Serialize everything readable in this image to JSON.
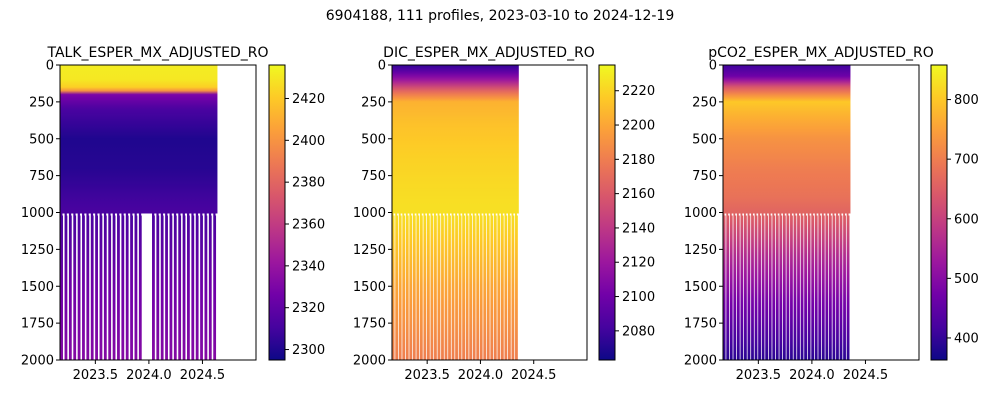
{
  "suptitle": "6904188, 111 profiles, 2023-03-10 to 2024-12-19",
  "colormap": "plasma",
  "chart_data": [
    {
      "type": "heatmap",
      "title": "TALK_ESPER_MX_ADJUSTED_RO",
      "x_ticks": [
        2023.5,
        2024.0,
        2024.5
      ],
      "x_tick_labels": [
        "2023.5",
        "2024.0",
        "2024.5"
      ],
      "xlim": [
        2023.17,
        2025.0
      ],
      "data_x_range": [
        2023.17,
        2024.64
      ],
      "y_ticks": [
        0,
        250,
        500,
        750,
        1000,
        1250,
        1500,
        1750,
        2000
      ],
      "y_tick_labels": [
        "0",
        "250",
        "500",
        "750",
        "1000",
        "1250",
        "1500",
        "1750",
        "2000"
      ],
      "ylim": [
        2000,
        0
      ],
      "y_inverted": true,
      "deep_profile_gap_x": 2023.99,
      "deep_cutoff_depth": 1000,
      "colorbar": {
        "min": 2295,
        "max": 2436,
        "reversed": false,
        "ticks": [
          2300,
          2320,
          2340,
          2360,
          2380,
          2400,
          2420
        ],
        "tick_labels": [
          "2300",
          "2320",
          "2340",
          "2360",
          "2380",
          "2400",
          "2420"
        ]
      },
      "profile_values": {
        "depths": [
          0,
          100,
          150,
          180,
          200,
          300,
          500,
          700,
          900,
          1000,
          1500,
          2000
        ],
        "values": [
          2432,
          2430,
          2422,
          2395,
          2330,
          2312,
          2300,
          2302,
          2309,
          2312,
          2325,
          2333
        ]
      }
    },
    {
      "type": "heatmap",
      "title": "DIC_ESPER_MX_ADJUSTED_RO",
      "x_ticks": [
        2023.5,
        2024.0,
        2024.5
      ],
      "x_tick_labels": [
        "2023.5",
        "2024.0",
        "2024.5"
      ],
      "xlim": [
        2023.17,
        2025.0
      ],
      "data_x_range": [
        2023.17,
        2024.36
      ],
      "y_ticks": [
        0,
        250,
        500,
        750,
        1000,
        1250,
        1500,
        1750,
        2000
      ],
      "y_tick_labels": [
        "0",
        "250",
        "500",
        "750",
        "1000",
        "1250",
        "1500",
        "1750",
        "2000"
      ],
      "ylim": [
        2000,
        0
      ],
      "y_inverted": true,
      "deep_profile_gap_x": null,
      "deep_cutoff_depth": 1000,
      "colorbar": {
        "min": 2063,
        "max": 2235,
        "reversed": false,
        "ticks": [
          2080,
          2100,
          2120,
          2140,
          2160,
          2180,
          2200,
          2220
        ],
        "tick_labels": [
          "2080",
          "2100",
          "2120",
          "2140",
          "2160",
          "2180",
          "2200",
          "2220"
        ]
      },
      "profile_values": {
        "depths": [
          0,
          40,
          100,
          180,
          250,
          400,
          600,
          800,
          1000,
          1500,
          2000
        ],
        "values": [
          2075,
          2090,
          2120,
          2170,
          2205,
          2212,
          2218,
          2222,
          2225,
          2200,
          2180
        ]
      }
    },
    {
      "type": "heatmap",
      "title": "pCO2_ESPER_MX_ADJUSTED_RO",
      "x_ticks": [
        2023.5,
        2024.0,
        2024.5
      ],
      "x_tick_labels": [
        "2023.5",
        "2024.0",
        "2024.5"
      ],
      "xlim": [
        2023.17,
        2025.0
      ],
      "data_x_range": [
        2023.17,
        2024.36
      ],
      "y_ticks": [
        0,
        250,
        500,
        750,
        1000,
        1250,
        1500,
        1750,
        2000
      ],
      "y_tick_labels": [
        "0",
        "250",
        "500",
        "750",
        "1000",
        "1250",
        "1500",
        "1750",
        "2000"
      ],
      "ylim": [
        2000,
        0
      ],
      "y_inverted": true,
      "deep_profile_gap_x": null,
      "deep_cutoff_depth": 1000,
      "colorbar": {
        "min": 363,
        "max": 858,
        "reversed": false,
        "ticks": [
          400,
          500,
          600,
          700,
          800
        ],
        "tick_labels": [
          "400",
          "500",
          "600",
          "700",
          "800"
        ]
      },
      "profile_values": {
        "depths": [
          0,
          80,
          150,
          250,
          350,
          500,
          700,
          900,
          1000,
          1300,
          1600,
          2000
        ],
        "values": [
          410,
          470,
          640,
          800,
          770,
          730,
          700,
          680,
          660,
          560,
          480,
          390
        ]
      }
    }
  ]
}
